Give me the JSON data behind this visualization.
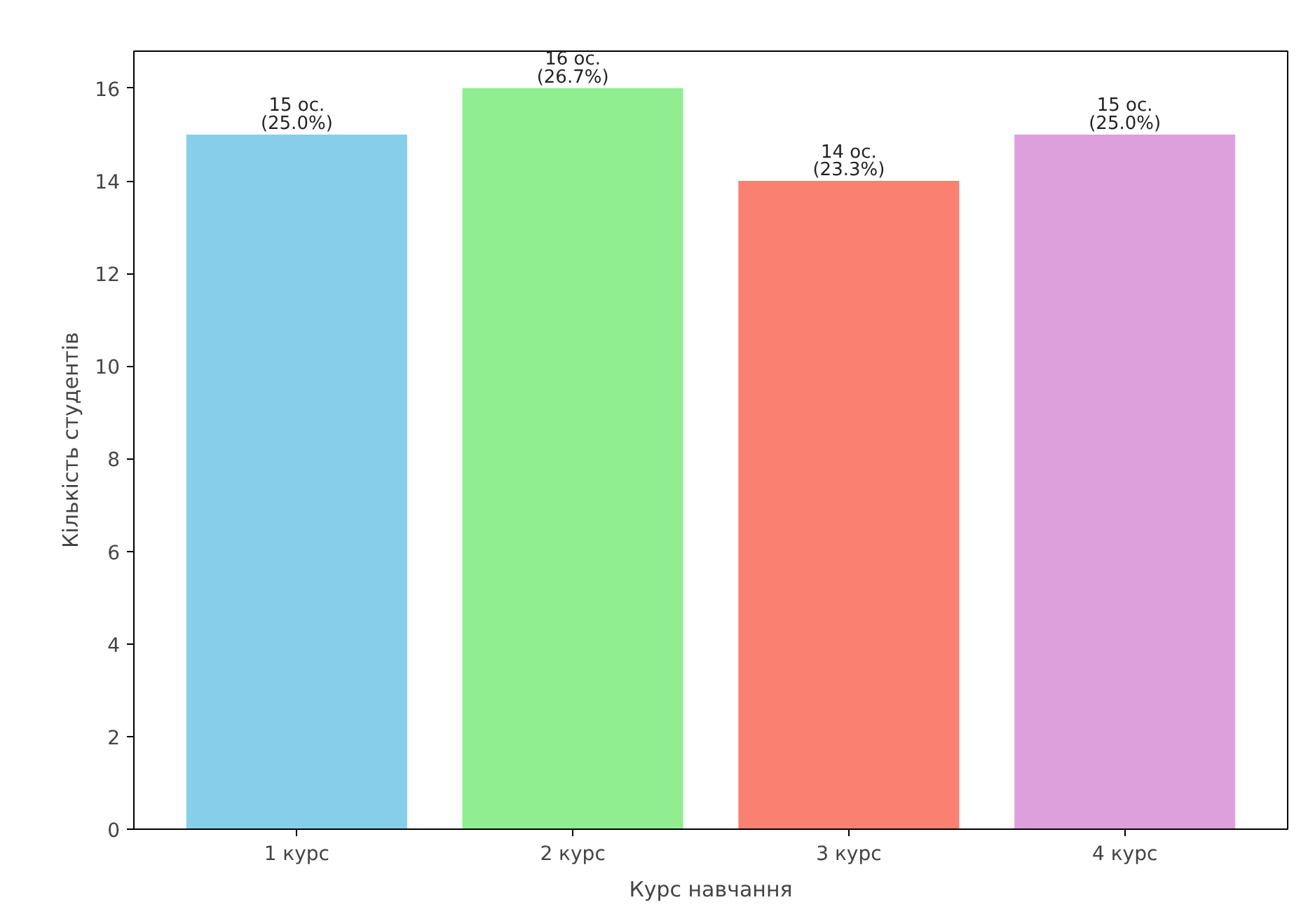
{
  "chart_data": {
    "type": "bar",
    "xlabel": "Курс навчання",
    "ylabel": "Кількість студентів",
    "categories": [
      "1 курс",
      "2 курс",
      "3 курс",
      "4 курс"
    ],
    "values": [
      15,
      16,
      14,
      15
    ],
    "colors": [
      "#87ceeb",
      "#90ee90",
      "#fa8072",
      "#dda0dd"
    ],
    "value_labels": [
      "15 ос.\n(25.0%)",
      "16 ос.\n(26.7%)",
      "14 ос.\n(23.3%)",
      "15 ос.\n(25.0%)"
    ],
    "ylim": [
      0,
      16.8
    ],
    "yticks": [
      0,
      2,
      4,
      6,
      8,
      10,
      12,
      14,
      16
    ],
    "grid": false
  }
}
